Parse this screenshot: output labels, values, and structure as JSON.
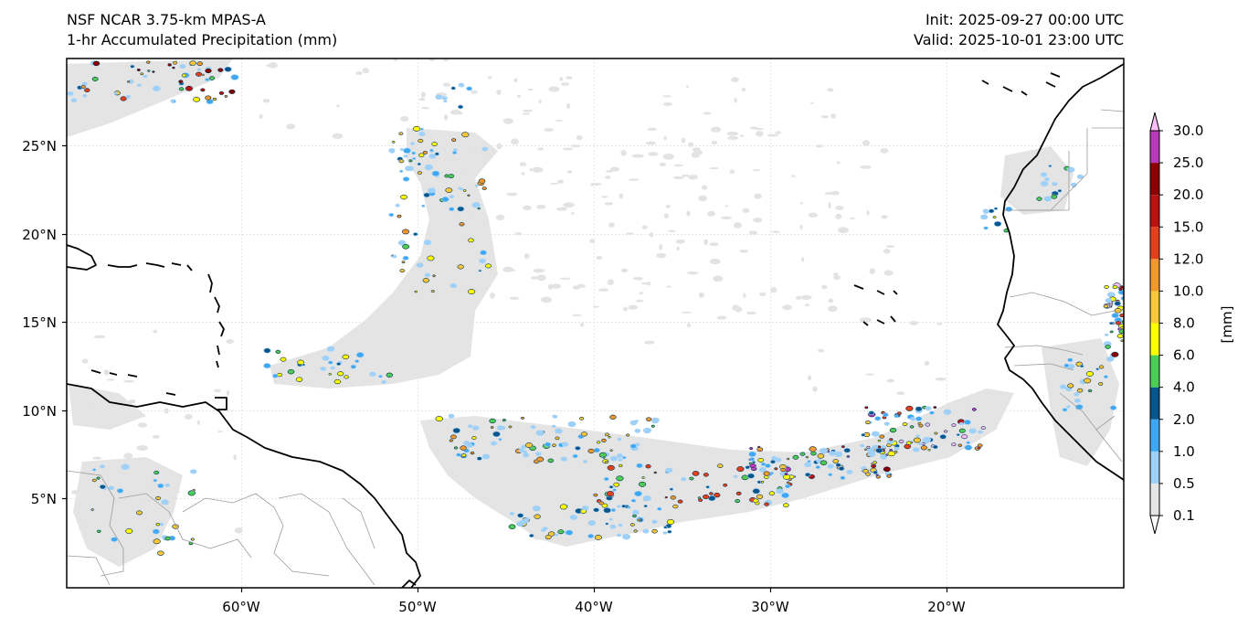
{
  "header": {
    "model_name": "NSF NCAR 3.75-km MPAS-A",
    "field_name": "1-hr Accumulated Precipitation (mm)",
    "init_time": "Init: 2025-09-27 00:00 UTC",
    "valid_time": "Valid: 2025-10-01 23:00 UTC"
  },
  "map": {
    "lon_ticks": [
      "60°W",
      "50°W",
      "40°W",
      "30°W",
      "20°W"
    ],
    "lat_ticks": [
      "25°N",
      "20°N",
      "15°N",
      "10°N",
      "5°N"
    ],
    "colors": {
      "land_border": "#000000",
      "country_border": "#9a9a9a",
      "grid": "#dddddd",
      "light_precip": "#e3e3e3"
    }
  },
  "colorbar": {
    "unit_label": "[mm]",
    "levels": [
      "0.1",
      "0.5",
      "1.0",
      "2.0",
      "4.0",
      "6.0",
      "8.0",
      "10.0",
      "12.0",
      "15.0",
      "20.0",
      "25.0",
      "30.0"
    ],
    "colors": [
      "#e6e6e6",
      "#9fd0f7",
      "#3ea7f2",
      "#08558a",
      "#4ccd57",
      "#ffff00",
      "#f7c93a",
      "#f2992e",
      "#e3401e",
      "#b91212",
      "#8b0000",
      "#b93ab8",
      "#f9bff6"
    ]
  }
}
